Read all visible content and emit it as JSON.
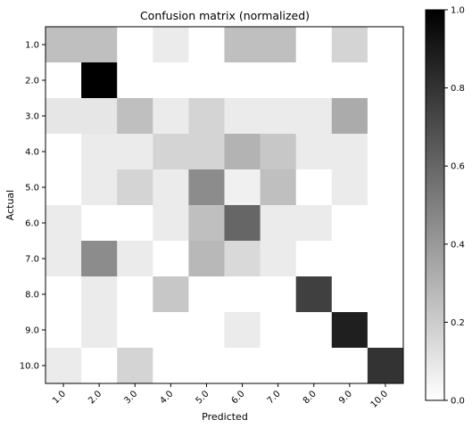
{
  "chart_data": {
    "type": "heatmap",
    "title": "Confusion matrix (normalized)",
    "xlabel": "Predicted",
    "ylabel": "Actual",
    "x_categories": [
      "1.0",
      "2.0",
      "3.0",
      "4.0",
      "5.0",
      "6.0",
      "7.0",
      "8.0",
      "9.0",
      "10.0"
    ],
    "y_categories": [
      "1.0",
      "2.0",
      "3.0",
      "4.0",
      "5.0",
      "6.0",
      "7.0",
      "8.0",
      "9.0",
      "10.0"
    ],
    "values": [
      [
        0.25,
        0.25,
        0.0,
        0.08,
        0.0,
        0.25,
        0.25,
        0.0,
        0.17,
        0.0
      ],
      [
        0.0,
        1.0,
        0.0,
        0.0,
        0.0,
        0.0,
        0.0,
        0.0,
        0.0,
        0.0
      ],
      [
        0.1,
        0.1,
        0.25,
        0.08,
        0.17,
        0.08,
        0.08,
        0.08,
        0.33,
        0.0
      ],
      [
        0.0,
        0.08,
        0.08,
        0.17,
        0.17,
        0.3,
        0.22,
        0.08,
        0.08,
        0.0
      ],
      [
        0.0,
        0.08,
        0.17,
        0.08,
        0.45,
        0.06,
        0.25,
        0.0,
        0.08,
        0.0
      ],
      [
        0.08,
        0.0,
        0.0,
        0.08,
        0.25,
        0.6,
        0.08,
        0.08,
        0.0,
        0.0
      ],
      [
        0.08,
        0.45,
        0.08,
        0.0,
        0.28,
        0.15,
        0.08,
        0.0,
        0.0,
        0.0
      ],
      [
        0.0,
        0.08,
        0.0,
        0.22,
        0.0,
        0.0,
        0.0,
        0.75,
        0.0,
        0.0
      ],
      [
        0.0,
        0.08,
        0.0,
        0.0,
        0.0,
        0.08,
        0.0,
        0.0,
        0.88,
        0.0
      ],
      [
        0.08,
        0.0,
        0.17,
        0.0,
        0.0,
        0.0,
        0.0,
        0.0,
        0.0,
        0.8
      ]
    ],
    "colormap": "Greys",
    "value_range": [
      0.0,
      1.0
    ],
    "colorbar_ticks": [
      "0.0",
      "0.2",
      "0.4",
      "0.6",
      "0.8",
      "1.0"
    ]
  }
}
